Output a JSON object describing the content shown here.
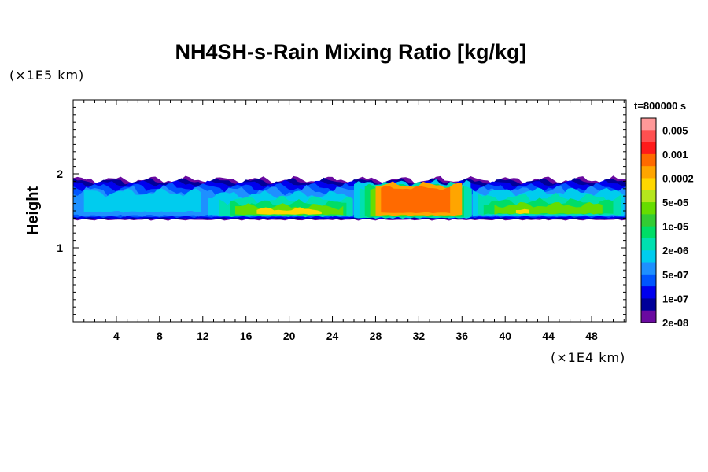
{
  "chart_data": {
    "type": "heatmap",
    "title": "NH4SH-s-Rain Mixing Ratio [kg/kg]",
    "ylabel": "Height",
    "x_unit_label": "(×1E4 km)",
    "y_unit_label": "(×1E5 km)",
    "time_label": "t=800000 s",
    "xlim": [
      0,
      51.2
    ],
    "ylim": [
      0,
      3.0
    ],
    "x_ticks": [
      4,
      8,
      12,
      16,
      20,
      24,
      28,
      32,
      36,
      40,
      44,
      48
    ],
    "y_ticks": [
      1,
      2
    ],
    "colorbar": {
      "labels": [
        "0.005",
        "0.001",
        "0.0002",
        "5e-05",
        "1e-05",
        "2e-06",
        "5e-07",
        "1e-07",
        "2e-08"
      ],
      "colors": [
        "#ff9999",
        "#ff5050",
        "#ff1a1a",
        "#ff6a00",
        "#ffa500",
        "#ffd700",
        "#b5e61d",
        "#66dd00",
        "#33cc33",
        "#00dd66",
        "#00e0b0",
        "#00ccee",
        "#1e90ff",
        "#0055ff",
        "#0000ee",
        "#000099",
        "#6a0aa0"
      ]
    },
    "layer": {
      "bottom_height_approx": 1.4,
      "top_height_approx": 1.92,
      "max_region_x_range": [
        28,
        36
      ],
      "max_region_height": [
        1.45,
        1.85
      ]
    }
  }
}
